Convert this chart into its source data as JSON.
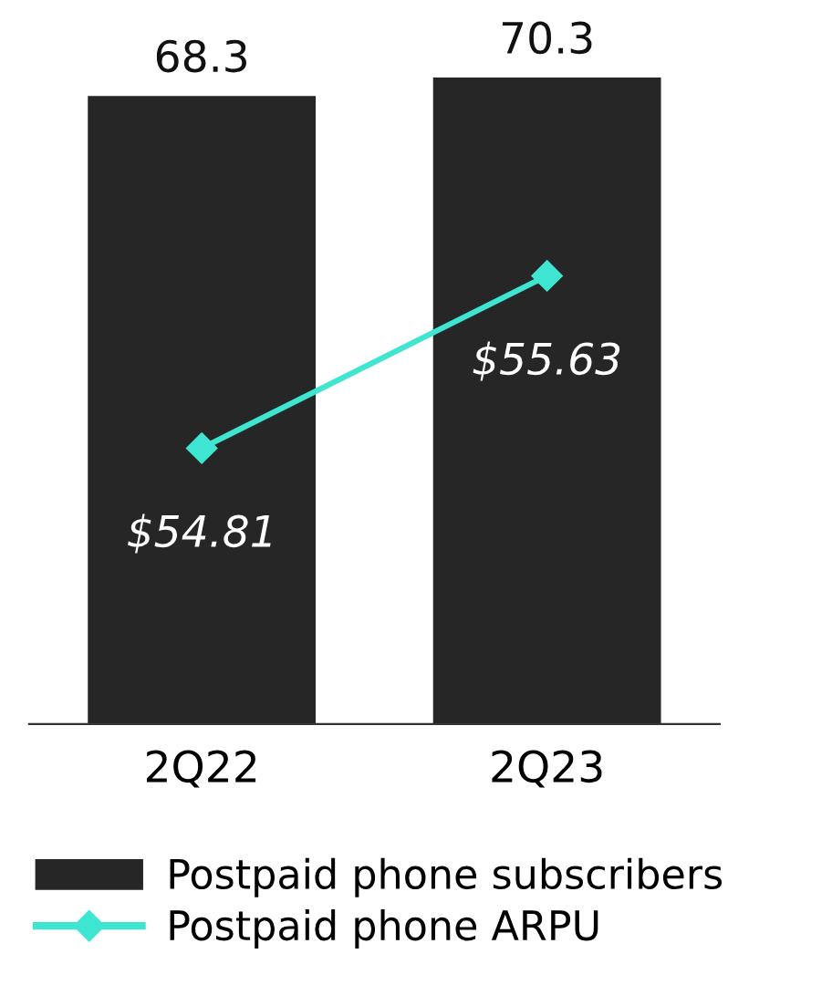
{
  "chart_data": {
    "type": "bar",
    "categories": [
      "2Q22",
      "2Q23"
    ],
    "series": [
      {
        "name": "Postpaid phone subscribers",
        "color": "#262626",
        "values": [
          68.3,
          70.3
        ],
        "value_labels": [
          "68.3",
          "70.3"
        ]
      },
      {
        "name": "Postpaid phone ARPU",
        "type": "line",
        "axis": "y2",
        "color": "#3ee6d2",
        "values": [
          54.81,
          55.63
        ],
        "value_labels": [
          "$54.81",
          "$55.63"
        ]
      }
    ],
    "tick_labels": "x",
    "marker": "diamond",
    "line_style": "solid",
    "legend": "bottom"
  }
}
